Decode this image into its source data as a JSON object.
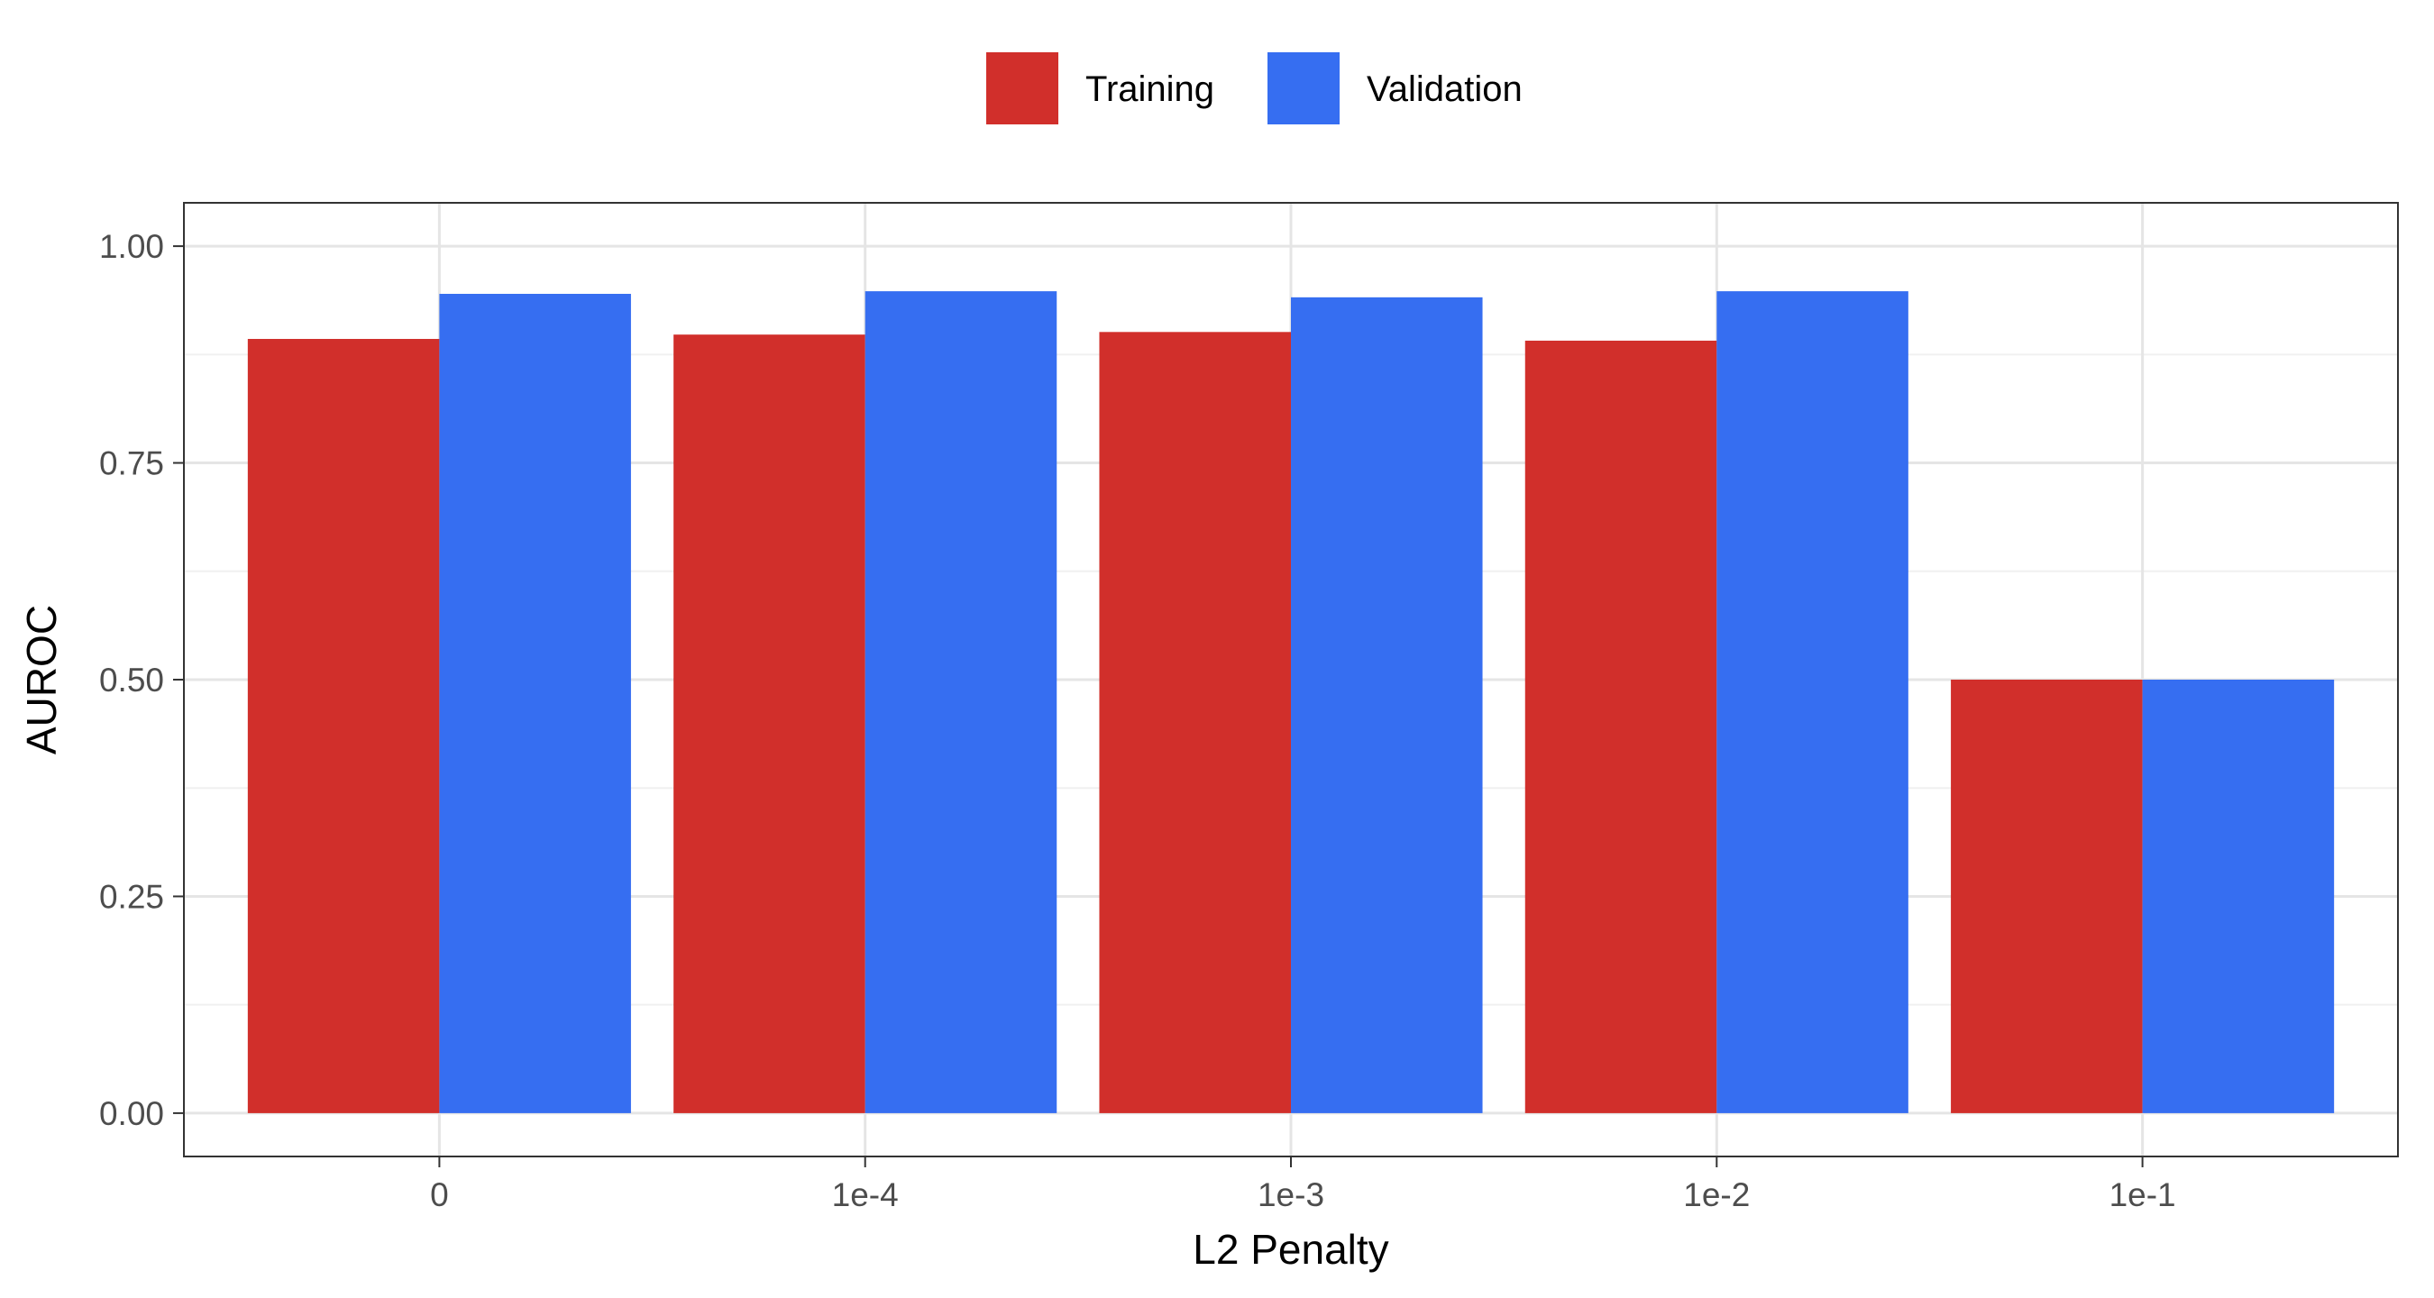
{
  "chart_data": {
    "type": "bar",
    "xlabel": "L2 Penalty",
    "ylabel": "AUROC",
    "categories": [
      "0",
      "1e-4",
      "1e-3",
      "1e-2",
      "1e-1"
    ],
    "series": [
      {
        "name": "Training",
        "color": "#D12F2B",
        "values": [
          0.893,
          0.898,
          0.901,
          0.891,
          0.5
        ]
      },
      {
        "name": "Validation",
        "color": "#366EF1",
        "values": [
          0.945,
          0.948,
          0.941,
          0.948,
          0.5
        ]
      }
    ],
    "yticks": [
      0.0,
      0.25,
      0.5,
      0.75,
      1.0
    ],
    "ytick_labels": [
      "0.00",
      "0.25",
      "0.50",
      "0.75",
      "1.00"
    ],
    "ylim": [
      -0.05,
      1.05
    ],
    "legend_position": "top",
    "grid": true
  }
}
